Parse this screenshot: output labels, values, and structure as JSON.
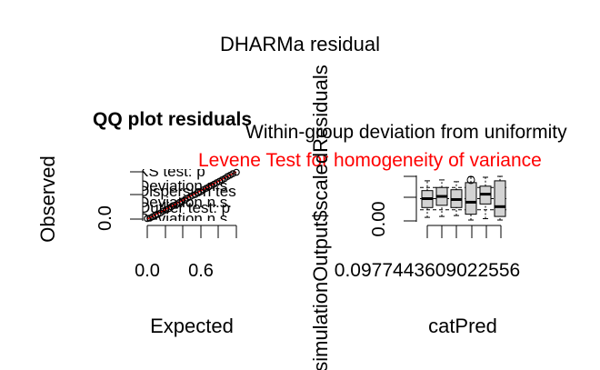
{
  "figure": {
    "title": "DHARMa residual"
  },
  "chart_data": [
    {
      "type": "scatter",
      "title": "QQ plot residuals",
      "xlabel": "Expected",
      "ylabel": "Observed",
      "x_tick_labels": [
        "0.0",
        "0.6"
      ],
      "y_tick_labels": [
        "0.0"
      ],
      "xlim": [
        0,
        1
      ],
      "ylim": [
        0,
        1
      ],
      "grid": false,
      "test_annotations": [
        "KS test: p",
        "Deviation n.s.",
        "Dispersion test:",
        "Deviation n.s.",
        "Outlier test: p",
        "Deviation n.s."
      ],
      "reference_line": {
        "x": [
          0,
          1
        ],
        "y": [
          0,
          1
        ],
        "color": "#ff0000"
      },
      "points": {
        "x": [
          0.0,
          0.03,
          0.06,
          0.09,
          0.12,
          0.15,
          0.18,
          0.21,
          0.24,
          0.27,
          0.3,
          0.33,
          0.36,
          0.39,
          0.42,
          0.45,
          0.48,
          0.51,
          0.54,
          0.57,
          0.6,
          0.63,
          0.66,
          0.69,
          0.72,
          0.75,
          0.78,
          0.81,
          0.84,
          0.87,
          0.9,
          0.93,
          0.96,
          1.0
        ],
        "y": [
          0.01,
          0.02,
          0.05,
          0.08,
          0.1,
          0.13,
          0.17,
          0.2,
          0.22,
          0.26,
          0.29,
          0.31,
          0.35,
          0.38,
          0.4,
          0.44,
          0.47,
          0.5,
          0.52,
          0.56,
          0.58,
          0.62,
          0.65,
          0.68,
          0.71,
          0.74,
          0.77,
          0.8,
          0.83,
          0.86,
          0.9,
          0.93,
          0.96,
          0.99
        ]
      },
      "marker_color": "#000000"
    },
    {
      "type": "box",
      "title": "Within-group deviation from uniformity",
      "subtitle": "Levene Test for homogeneity of variance",
      "subtitle_color": "#ff0000",
      "xlabel": "catPred",
      "ylabel": "simulationOutput$scaledResiduals",
      "x_tick_label": "0.0977443609022556",
      "y_tick_labels": [
        "0.00"
      ],
      "ylim": [
        0,
        1
      ],
      "reference_lines": [
        0.25,
        0.5,
        0.75
      ],
      "box_fill": "#d3d3d3",
      "groups": [
        {
          "min": 0.08,
          "q1": 0.3,
          "median": 0.5,
          "q3": 0.68,
          "max": 0.9
        },
        {
          "min": 0.1,
          "q1": 0.35,
          "median": 0.55,
          "q3": 0.75,
          "max": 0.92
        },
        {
          "min": 0.12,
          "q1": 0.3,
          "median": 0.48,
          "q3": 0.7,
          "max": 0.88
        },
        {
          "min": 0.02,
          "q1": 0.15,
          "median": 0.42,
          "q3": 0.86,
          "max": 0.99
        },
        {
          "min": 0.05,
          "q1": 0.38,
          "median": 0.6,
          "q3": 0.78,
          "max": 0.98
        },
        {
          "min": 0.02,
          "q1": 0.1,
          "median": 0.32,
          "q3": 0.9,
          "max": 1.0
        }
      ],
      "outliers": [
        {
          "group": 3,
          "y": 0.92
        }
      ]
    }
  ]
}
